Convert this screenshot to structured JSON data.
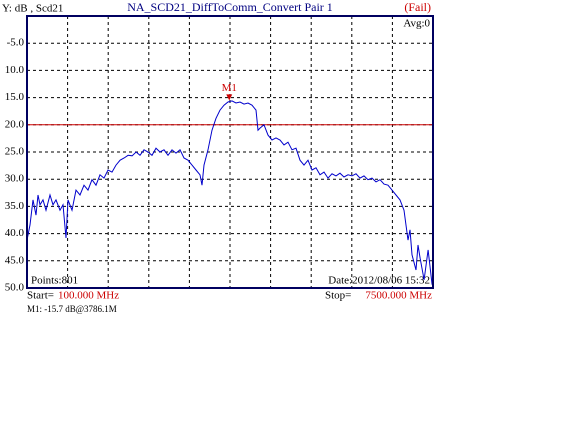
{
  "chart_data": {
    "type": "line",
    "header": "Y: dB , Scd21",
    "title": "NA_SCD21_DiffToComm_Convert Pair 1",
    "status": "(Fail)",
    "status_color": "#cc0000",
    "avg": "Avg:0",
    "points": "Points:801",
    "date": "Date:2012/08/06 15:32",
    "start_label": "Start=",
    "start": "100.000 MHz",
    "stop_label": "Stop=",
    "stop": "7500.000 MHz",
    "marker_readout": "M1: -15.7 dB@3786.1M",
    "xlim": [
      100,
      7500
    ],
    "ylim": [
      -50,
      0
    ],
    "xticks": [
      840,
      1580,
      2320,
      3060,
      3800,
      4540,
      5280,
      6020,
      6760
    ],
    "yticks": [
      {
        "value": -5,
        "label": "-5.0"
      },
      {
        "value": -10,
        "label": "10.0"
      },
      {
        "value": -15,
        "label": "15.0"
      },
      {
        "value": -20,
        "label": "20.0"
      },
      {
        "value": -25,
        "label": "25.0"
      },
      {
        "value": -30,
        "label": "30.0"
      },
      {
        "value": -35,
        "label": "35.0"
      },
      {
        "value": -40,
        "label": "40.0"
      },
      {
        "value": -45,
        "label": "45.0"
      },
      {
        "value": -50,
        "label": "50.0"
      }
    ],
    "grid": true,
    "limit_line": {
      "value": -20,
      "color": "#cc0000"
    },
    "markers": [
      {
        "label": "M1",
        "x": 3786.1,
        "y": -15.7,
        "color": "#cc0000"
      }
    ],
    "x": [
      100,
      155,
      209,
      264,
      300,
      337,
      392,
      446,
      519,
      574,
      629,
      701,
      756,
      811,
      847,
      920,
      993,
      1066,
      1139,
      1212,
      1285,
      1358,
      1431,
      1504,
      1577,
      1650,
      1723,
      1796,
      1869,
      1942,
      2015,
      2088,
      2160,
      2233,
      2306,
      2378,
      2451,
      2524,
      2597,
      2670,
      2743,
      2816,
      2889,
      2962,
      3035,
      3107,
      3180,
      3253,
      3290,
      3326,
      3399,
      3472,
      3545,
      3618,
      3691,
      3764,
      3837,
      3909,
      3982,
      4055,
      4128,
      4201,
      4274,
      4310,
      4347,
      4420,
      4493,
      4566,
      4639,
      4711,
      4784,
      4857,
      4930,
      5003,
      5076,
      5149,
      5222,
      5295,
      5368,
      5441,
      5513,
      5586,
      5659,
      5732,
      5805,
      5878,
      5951,
      6024,
      6097,
      6170,
      6243,
      6315,
      6388,
      6461,
      6534,
      6607,
      6680,
      6753,
      6826,
      6899,
      6972,
      7045,
      7081,
      7118,
      7191,
      7227,
      7264,
      7337,
      7410,
      7483
    ],
    "series": [
      {
        "color": "#0000cc",
        "values": [
          -41.2,
          -38.4,
          -33.8,
          -36.6,
          -32.9,
          -34.7,
          -33.8,
          -35.7,
          -32.9,
          -34.7,
          -33.8,
          -35.7,
          -34.7,
          -40.8,
          -33.8,
          -35.7,
          -32.0,
          -32.9,
          -31.1,
          -32.0,
          -30.1,
          -31.1,
          -29.2,
          -29.8,
          -28.3,
          -28.7,
          -27.4,
          -26.5,
          -26.1,
          -25.6,
          -25.7,
          -25.0,
          -25.6,
          -24.6,
          -25.0,
          -25.6,
          -24.3,
          -25.0,
          -24.6,
          -25.6,
          -24.6,
          -25.2,
          -24.6,
          -26.1,
          -26.5,
          -27.4,
          -28.3,
          -29.2,
          -31.1,
          -27.4,
          -24.6,
          -21.0,
          -18.8,
          -17.3,
          -16.4,
          -15.8,
          -15.6,
          -16.0,
          -15.8,
          -16.2,
          -16.0,
          -16.4,
          -17.3,
          -21.0,
          -20.6,
          -20.0,
          -21.9,
          -22.8,
          -22.4,
          -22.8,
          -23.7,
          -23.2,
          -24.6,
          -24.3,
          -26.5,
          -27.4,
          -26.5,
          -28.3,
          -27.9,
          -29.2,
          -28.7,
          -29.8,
          -29.0,
          -29.4,
          -28.9,
          -29.6,
          -29.2,
          -29.4,
          -29.0,
          -29.8,
          -29.4,
          -30.1,
          -29.8,
          -30.5,
          -30.1,
          -30.9,
          -31.1,
          -32.0,
          -32.9,
          -33.8,
          -35.7,
          -41.2,
          -39.3,
          -43.9,
          -46.7,
          -42.1,
          -44.5,
          -48.5,
          -43.0,
          -49.4
        ]
      }
    ]
  }
}
